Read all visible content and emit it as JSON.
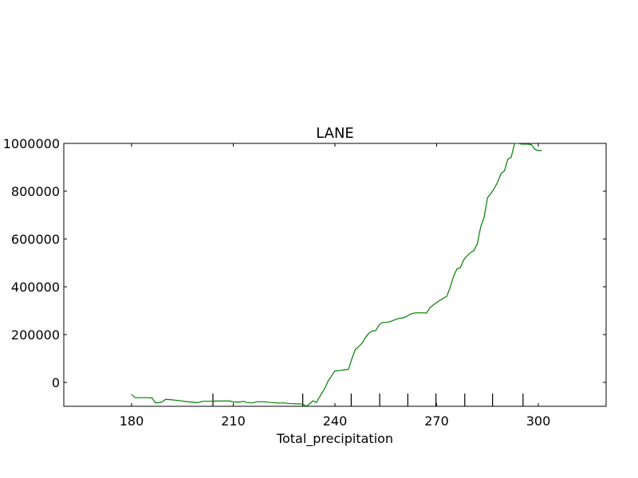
{
  "chart_data": {
    "type": "line",
    "title": "LANE",
    "xlabel": "Total_precipitation",
    "ylabel": "",
    "xlim": [
      160,
      320
    ],
    "ylim": [
      -100000,
      1000000
    ],
    "x_ticks": [
      180,
      210,
      240,
      270,
      300
    ],
    "y_ticks": [
      0,
      200000,
      400000,
      600000,
      800000,
      1000000
    ],
    "grid": false,
    "line_color": "#008000",
    "rug_ticks": [
      204.0,
      230.5,
      244.8,
      253.2,
      261.5,
      269.8,
      278.3,
      286.5,
      295.5
    ],
    "series": [
      {
        "x": [
          180.0,
          181.0,
          183.0,
          185.0,
          186.0,
          187.0,
          188.0,
          189.0,
          190.0,
          192.0,
          194.0,
          196.0,
          198.0,
          199.5,
          201.0,
          203.0,
          205.0,
          207.0,
          209.0,
          210.0,
          212.0,
          213.0,
          214.0,
          215.5,
          217.0,
          219.0,
          221.0,
          223.0,
          225.0,
          227.0,
          229.0,
          230.5,
          231.5,
          232.5,
          233.5,
          234.5,
          236.0,
          237.0,
          238.0,
          240.0,
          241.0,
          242.0,
          243.0,
          244.0,
          245.0,
          246.0,
          247.0,
          248.0,
          249.0,
          250.0,
          251.0,
          252.0,
          253.0,
          254.0,
          255.0,
          256.0,
          257.0,
          258.0,
          259.0,
          260.0,
          261.0,
          262.0,
          263.0,
          264.0,
          265.0,
          266.0,
          267.0,
          268.0,
          269.0,
          270.0,
          271.0,
          272.0,
          273.0,
          274.0,
          275.0,
          276.0,
          277.0,
          278.0,
          279.0,
          280.0,
          281.0,
          282.0,
          283.0,
          284.0,
          285.0,
          286.0,
          287.0,
          288.0,
          289.0,
          290.0,
          291.0,
          292.0,
          293.0,
          294.0,
          295.0,
          296.0,
          297.0,
          298.0,
          299.0,
          300.0,
          301.0
        ],
        "y": [
          -50000,
          -64000,
          -64000,
          -64000,
          -65000,
          -85000,
          -85000,
          -82000,
          -71000,
          -73000,
          -76000,
          -80000,
          -83000,
          -85000,
          -79000,
          -79000,
          -78000,
          -78000,
          -78000,
          -82000,
          -82000,
          -79000,
          -84000,
          -86000,
          -81000,
          -81000,
          -84000,
          -86000,
          -86000,
          -89000,
          -90000,
          -90000,
          -100000,
          -90000,
          -77000,
          -84000,
          -48000,
          -25000,
          6000,
          48000,
          49000,
          51000,
          53000,
          55000,
          100000,
          137000,
          150000,
          164000,
          188000,
          206000,
          215000,
          216000,
          240000,
          251000,
          251000,
          253000,
          258000,
          264000,
          268000,
          270000,
          275000,
          284000,
          289000,
          291000,
          291000,
          291000,
          290000,
          312000,
          324000,
          334000,
          344000,
          352000,
          360000,
          398000,
          445000,
          475000,
          480000,
          513000,
          530000,
          543000,
          552000,
          580000,
          652000,
          690000,
          773000,
          790000,
          812000,
          838000,
          874000,
          885000,
          934000,
          942000,
          1000000,
          1000000,
          997000,
          997000,
          997000,
          994000,
          975000,
          970000,
          970000
        ]
      }
    ]
  }
}
